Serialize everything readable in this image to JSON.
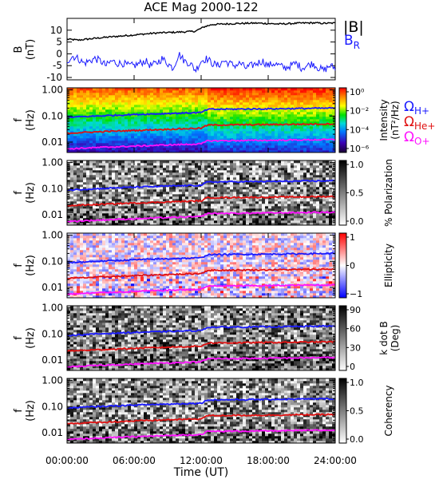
{
  "chart_data": {
    "type": "spectrogram",
    "title": "ACE Mag 2000-122",
    "xlabel": "Time (UT)",
    "x_ticks": [
      "00:00:00",
      "06:00:00",
      "12:00:00",
      "18:00:00",
      "24:00:00"
    ],
    "x_range_hours": [
      0,
      24
    ],
    "colors": {
      "b_total": "#000000",
      "b_r": "#1a1aff",
      "h_plus": "#1a1aff",
      "he_plus": "#e01010",
      "o_plus": "#ff10ff"
    },
    "top_panel": {
      "ylabel": "B",
      "yunit": "(nT)",
      "ylim": [
        -11,
        15
      ],
      "y_ticks": [
        "10",
        "5",
        "0",
        "-5",
        "-10"
      ],
      "series": [
        {
          "name": "|B|",
          "key": "b_total",
          "x": [
            0,
            1,
            2,
            3,
            4,
            5,
            6,
            7,
            8,
            9,
            10,
            11,
            11.5,
            12.3,
            13,
            14,
            15,
            16,
            17,
            18,
            19,
            20,
            21,
            22,
            23,
            24
          ],
          "y": [
            6.2,
            5.8,
            6.3,
            6.8,
            7.2,
            7.6,
            8.0,
            8.4,
            8.8,
            9.0,
            9.2,
            9.4,
            9.6,
            11.5,
            12.4,
            12.6,
            12.8,
            12.9,
            13.0,
            12.8,
            12.6,
            12.8,
            13.0,
            13.1,
            12.9,
            13.0
          ]
        },
        {
          "name": "B",
          "subscript": "R",
          "key": "b_r",
          "x": [
            0,
            0.5,
            1,
            1.5,
            2,
            2.5,
            3,
            3.5,
            4,
            4.5,
            5,
            5.5,
            6,
            6.5,
            7,
            7.5,
            8,
            8.5,
            9,
            9.5,
            10,
            10.5,
            11,
            11.5,
            12,
            12.5,
            13,
            13.5,
            14,
            14.5,
            15,
            15.5,
            16,
            16.5,
            17,
            17.5,
            18,
            18.5,
            19,
            19.5,
            20,
            20.5,
            21,
            21.5,
            22,
            22.5,
            23,
            23.5,
            24
          ],
          "y": [
            -3,
            -1,
            -2,
            -4,
            -3,
            -2,
            -3,
            -5,
            -3,
            -4,
            -4,
            -5,
            -5,
            -4,
            -3,
            -5,
            -4,
            -2,
            -4,
            -6,
            0,
            -3,
            -4,
            -7,
            -3,
            -2,
            -4,
            -5,
            -3,
            -4,
            -5,
            -4,
            -6,
            -5,
            -4,
            -3,
            -5,
            -4,
            -5,
            -6,
            -5,
            -4,
            -6,
            -5,
            -4,
            -6,
            -7,
            -5,
            -6
          ]
        }
      ]
    },
    "spectrogram_panels": [
      {
        "id": "intensity",
        "ylabel": "f",
        "yunit": "(Hz)",
        "y_ticks": [
          "1.00",
          "0.10",
          "0.01"
        ],
        "ylog": true,
        "ylim": [
          0.004,
          1.2
        ],
        "colorbar_label": "Intensity",
        "colorbar_unit": "(nT²/Hz)",
        "colorbar_ticks": [
          "10⁰",
          "10⁻²",
          "10⁻⁴",
          "10⁻⁶"
        ],
        "colormap": "rainbow"
      },
      {
        "id": "polarization",
        "ylabel": "f",
        "yunit": "(Hz)",
        "y_ticks": [
          "1.00",
          "0.10",
          "0.01"
        ],
        "ylog": true,
        "ylim": [
          0.004,
          1.2
        ],
        "colorbar_label": "% Polarization",
        "colorbar_ticks": [
          "1.0",
          "0.5",
          "0.0"
        ],
        "colormap": "gray"
      },
      {
        "id": "ellipticity",
        "ylabel": "f",
        "yunit": "(Hz)",
        "y_ticks": [
          "1.00",
          "0.10",
          "0.01"
        ],
        "ylog": true,
        "ylim": [
          0.004,
          1.2
        ],
        "colorbar_label": "Ellipticity",
        "colorbar_ticks": [
          "1",
          "0",
          "−1"
        ],
        "colormap": "bwr"
      },
      {
        "id": "kdotb",
        "ylabel": "f",
        "yunit": "(Hz)",
        "y_ticks": [
          "1.00",
          "0.10",
          "0.01"
        ],
        "ylog": true,
        "ylim": [
          0.004,
          1.2
        ],
        "colorbar_label": "k dot B",
        "colorbar_unit": "(Deg)",
        "colorbar_ticks": [
          "90",
          "60",
          "30",
          "0"
        ],
        "colormap": "gray"
      },
      {
        "id": "coherency",
        "ylabel": "f",
        "yunit": "(Hz)",
        "y_ticks": [
          "1.00",
          "0.10",
          "0.01"
        ],
        "ylog": true,
        "ylim": [
          0.004,
          1.2
        ],
        "colorbar_label": "Coherency",
        "colorbar_ticks": [
          "1.0",
          "0.5",
          "0.0"
        ],
        "colormap": "gray"
      }
    ],
    "gyrofrequency_lines": [
      {
        "key": "h_plus",
        "label": "Ω",
        "subscript": "H+",
        "x": [
          0,
          6,
          12,
          12.6,
          18,
          24
        ],
        "y": [
          0.088,
          0.114,
          0.135,
          0.18,
          0.188,
          0.2
        ]
      },
      {
        "key": "he_plus",
        "label": "Ω",
        "subscript": "He+",
        "x": [
          0,
          6,
          12,
          12.6,
          18,
          24
        ],
        "y": [
          0.022,
          0.028,
          0.034,
          0.045,
          0.047,
          0.05
        ]
      },
      {
        "key": "o_plus",
        "label": "Ω",
        "subscript": "O+",
        "x": [
          0,
          6,
          12,
          12.6,
          18,
          24
        ],
        "y": [
          0.0055,
          0.007,
          0.0085,
          0.0112,
          0.0117,
          0.0125
        ]
      }
    ]
  }
}
